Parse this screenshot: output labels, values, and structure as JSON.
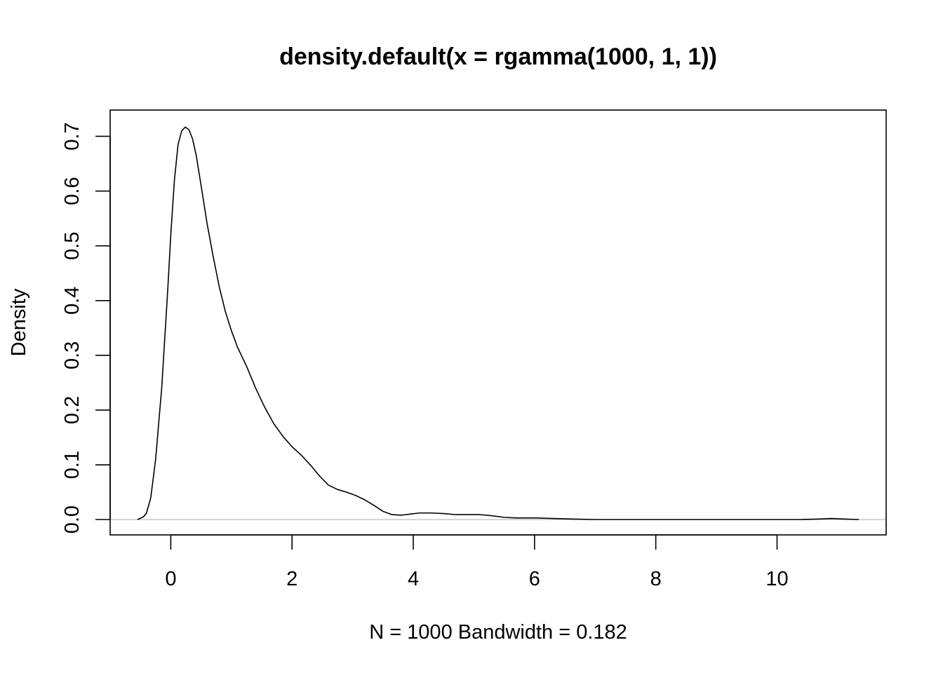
{
  "chart_data": {
    "type": "line",
    "title": "density.default(x = rgamma(1000, 1, 1))",
    "xlabel": "N = 1000   Bandwidth = 0.182",
    "ylabel": "Density",
    "xlim": [
      -1.0,
      11.8
    ],
    "ylim": [
      -0.028,
      0.748
    ],
    "x_ticks": [
      0,
      2,
      4,
      6,
      8,
      10
    ],
    "x_tick_labels": [
      "0",
      "2",
      "4",
      "6",
      "8",
      "10"
    ],
    "y_ticks": [
      0.0,
      0.1,
      0.2,
      0.3,
      0.4,
      0.5,
      0.6,
      0.7
    ],
    "y_tick_labels": [
      "0.0",
      "0.1",
      "0.2",
      "0.3",
      "0.4",
      "0.5",
      "0.6",
      "0.7"
    ],
    "baseline_y": 0,
    "baseline_color": "#bebebe",
    "line_color": "#000000",
    "series": [
      {
        "x": [
          -0.55,
          -0.45,
          -0.4,
          -0.33,
          -0.25,
          -0.15,
          -0.05,
          0.0,
          0.06,
          0.12,
          0.18,
          0.24,
          0.3,
          0.36,
          0.42,
          0.5,
          0.6,
          0.7,
          0.8,
          0.9,
          1.0,
          1.1,
          1.25,
          1.4,
          1.55,
          1.7,
          1.85,
          2.0,
          2.15,
          2.3,
          2.45,
          2.6,
          2.75,
          2.9,
          3.05,
          3.2,
          3.35,
          3.5,
          3.65,
          3.8,
          3.95,
          4.1,
          4.3,
          4.5,
          4.7,
          4.9,
          5.1,
          5.3,
          5.5,
          5.7,
          6.0,
          6.3,
          6.6,
          7.0,
          7.5,
          8.0,
          8.5,
          9.0,
          9.5,
          10.0,
          10.4,
          10.7,
          10.9,
          11.1,
          11.35
        ],
        "y": [
          0.0,
          0.005,
          0.012,
          0.04,
          0.11,
          0.24,
          0.42,
          0.52,
          0.62,
          0.685,
          0.71,
          0.717,
          0.712,
          0.695,
          0.665,
          0.61,
          0.54,
          0.48,
          0.425,
          0.38,
          0.345,
          0.315,
          0.28,
          0.24,
          0.205,
          0.175,
          0.152,
          0.133,
          0.118,
          0.1,
          0.08,
          0.063,
          0.055,
          0.05,
          0.044,
          0.036,
          0.026,
          0.015,
          0.009,
          0.008,
          0.01,
          0.012,
          0.012,
          0.011,
          0.009,
          0.009,
          0.009,
          0.007,
          0.004,
          0.003,
          0.003,
          0.002,
          0.001,
          0.0,
          0.0,
          0.0,
          0.0,
          0.0,
          0.0,
          0.0,
          0.0,
          0.001,
          0.002,
          0.001,
          0.0
        ]
      }
    ]
  }
}
